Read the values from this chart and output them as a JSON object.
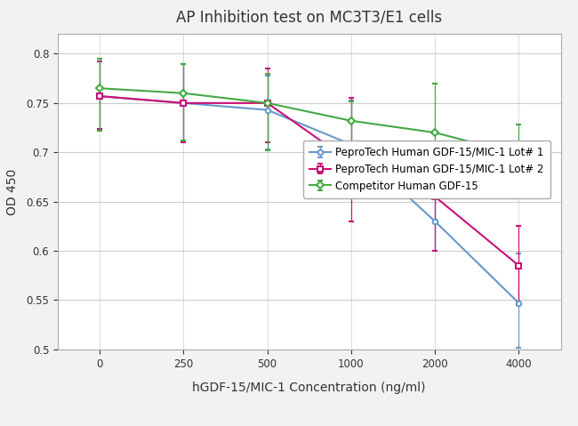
{
  "title": "AP Inhibition test on MC3T3/E1 cells",
  "xlabel": "hGDF-15/MIC-1 Concentration (ng/ml)",
  "ylabel": "OD 450",
  "x_labels": [
    "0",
    "250",
    "500",
    "1000",
    "2000",
    "4000"
  ],
  "series": [
    {
      "label": "PeproTech Human GDF-15/MIC-1 Lot# 1",
      "color": "#6699CC",
      "marker": "o",
      "y": [
        0.757,
        0.75,
        0.743,
        0.708,
        0.63,
        0.547
      ],
      "yerr_low": [
        0.033,
        0.04,
        0.04,
        0.055,
        0.03,
        0.045
      ],
      "yerr_high": [
        0.035,
        0.04,
        0.035,
        0.045,
        0.03,
        0.05
      ]
    },
    {
      "label": "PeproTech Human GDF-15/MIC-1 Lot# 2",
      "color": "#CC1177",
      "marker": "s",
      "y": [
        0.757,
        0.75,
        0.75,
        0.69,
        0.655,
        0.585
      ],
      "yerr_low": [
        0.033,
        0.04,
        0.04,
        0.06,
        0.055,
        0.04
      ],
      "yerr_high": [
        0.035,
        0.04,
        0.035,
        0.065,
        0.045,
        0.04
      ]
    },
    {
      "label": "Competitor Human GDF-15",
      "color": "#44AA44",
      "marker": "D",
      "y": [
        0.765,
        0.76,
        0.75,
        0.732,
        0.72,
        0.698
      ],
      "yerr_low": [
        0.043,
        0.048,
        0.048,
        0.048,
        0.035,
        0.04
      ],
      "yerr_high": [
        0.03,
        0.03,
        0.03,
        0.02,
        0.05,
        0.03
      ]
    }
  ],
  "ylim": [
    0.5,
    0.82
  ],
  "yticks": [
    0.5,
    0.55,
    0.6,
    0.65,
    0.7,
    0.75,
    0.8
  ],
  "background_color": "#f2f2f2",
  "plot_bg_color": "#ffffff",
  "title_fontsize": 12,
  "label_fontsize": 10,
  "tick_fontsize": 8.5,
  "legend_fontsize": 8.5
}
